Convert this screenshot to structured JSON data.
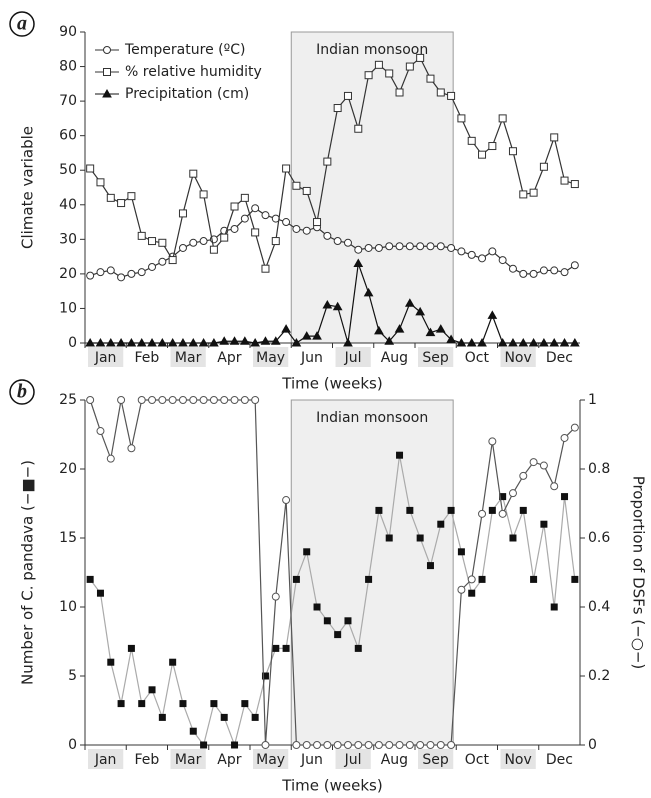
{
  "chart_data": [
    {
      "type": "line",
      "panel_label": "a",
      "ylabel": "Climate variable",
      "xlabel": "Time (weeks)",
      "x": [
        1,
        2,
        3,
        4,
        5,
        6,
        7,
        8,
        9,
        10,
        11,
        12,
        13,
        14,
        15,
        16,
        17,
        18,
        19,
        20,
        21,
        22,
        23,
        24,
        25,
        26,
        27,
        28,
        29,
        30,
        31,
        32,
        33,
        34,
        35,
        36,
        37,
        38,
        39,
        40,
        41,
        42,
        43,
        44,
        45,
        46,
        47,
        48
      ],
      "xlim": [
        0.5,
        48.5
      ],
      "months": [
        "Jan",
        "Feb",
        "Mar",
        "Apr",
        "May",
        "Jun",
        "Jul",
        "Aug",
        "Sep",
        "Oct",
        "Nov",
        "Dec"
      ],
      "ylim": [
        0,
        90
      ],
      "yticks": [
        0,
        10,
        20,
        30,
        40,
        50,
        60,
        70,
        80,
        90
      ],
      "band": {
        "label": "Indian monsoon",
        "range": [
          20.5,
          36.2
        ]
      },
      "legend": "upper left",
      "series": [
        {
          "name": "Temperature (ºC)",
          "marker": "circle",
          "color": "#333333",
          "line_color": "#333333",
          "values": [
            19.5,
            20.5,
            21,
            19,
            20,
            20.5,
            22,
            23.5,
            25,
            27.5,
            29,
            29.5,
            30,
            32.5,
            33,
            36,
            39,
            37,
            36,
            35,
            33,
            32.5,
            33.5,
            31,
            29.5,
            29,
            27,
            27.5,
            27.5,
            28,
            28,
            28,
            28,
            28,
            28,
            27.5,
            26.5,
            25.5,
            24.5,
            26.5,
            24,
            21.5,
            20,
            20,
            21,
            21,
            20.5,
            22.5
          ]
        },
        {
          "name": "% relative humidity",
          "marker": "square",
          "color": "#333333",
          "line_color": "#333333",
          "values": [
            50.5,
            46.5,
            42,
            40.5,
            42.5,
            31,
            29.5,
            29,
            24,
            37.5,
            49,
            43,
            27,
            30.5,
            39.5,
            42,
            32,
            21.5,
            29.5,
            50.5,
            45.5,
            44,
            35,
            52.5,
            68,
            71.5,
            62,
            77.5,
            80.5,
            78,
            72.5,
            80,
            82.5,
            76.5,
            72.5,
            71.5,
            65,
            58.5,
            54.5,
            57,
            65,
            55.5,
            43,
            43.5,
            51,
            59.5,
            47,
            46
          ]
        },
        {
          "name": "Precipitation (cm)",
          "marker": "triangle",
          "color": "#111111",
          "line_color": "#111111",
          "values": [
            0,
            0,
            0,
            0,
            0,
            0,
            0,
            0,
            0,
            0,
            0,
            0,
            0,
            0.5,
            0.5,
            0.5,
            0,
            0.5,
            0.5,
            4,
            0,
            2,
            2,
            11,
            10.5,
            0,
            23,
            14.5,
            3.5,
            0.5,
            4,
            11.5,
            9,
            3,
            4,
            1,
            0,
            0,
            0,
            8,
            0,
            0,
            0,
            0,
            0,
            0,
            0,
            0
          ]
        }
      ]
    },
    {
      "type": "line",
      "panel_label": "b",
      "ylabel": "Number of C. pandava (−■−)",
      "y2label": "Proportion of DSFs (−○−)",
      "xlabel": "Time (weeks)",
      "x": [
        1,
        2,
        3,
        4,
        5,
        6,
        7,
        8,
        9,
        10,
        11,
        12,
        13,
        14,
        15,
        16,
        17,
        18,
        19,
        20,
        21,
        22,
        23,
        24,
        25,
        26,
        27,
        28,
        29,
        30,
        31,
        32,
        33,
        34,
        35,
        36,
        37,
        38,
        39,
        40,
        41,
        42,
        43,
        44,
        45,
        46,
        47,
        48
      ],
      "xlim": [
        0.5,
        48.5
      ],
      "months": [
        "Jan",
        "Feb",
        "Mar",
        "Apr",
        "May",
        "Jun",
        "Jul",
        "Aug",
        "Sep",
        "Oct",
        "Nov",
        "Dec"
      ],
      "ylim": [
        0,
        25
      ],
      "yticks": [
        0,
        5,
        10,
        15,
        20,
        25
      ],
      "y2lim": [
        0,
        1
      ],
      "y2ticks": [
        0,
        0.2,
        0.4,
        0.6,
        0.8,
        1
      ],
      "band": {
        "label": "Indian monsoon",
        "range": [
          20.5,
          36.2
        ]
      },
      "series": [
        {
          "name": "Number of C. pandava",
          "marker": "filled-square",
          "color": "#111111",
          "line_color": "#aaaaaa",
          "values": [
            12,
            11,
            6,
            3,
            7,
            3,
            4,
            2,
            6,
            3,
            1,
            0,
            3,
            2,
            0,
            3,
            2,
            5,
            7,
            7,
            12,
            14,
            10,
            9,
            8,
            9,
            7,
            12,
            17,
            15,
            21,
            17,
            15,
            13,
            16,
            17,
            14,
            11,
            12,
            17,
            18,
            15,
            17,
            12,
            16,
            10,
            18,
            12
          ]
        },
        {
          "name": "Proportion of DSFs",
          "marker": "circle",
          "color": "#555555",
          "line_color": "#555555",
          "axis": "y2",
          "values": [
            1,
            0.91,
            0.83,
            1,
            0.86,
            1,
            1,
            1,
            1,
            1,
            1,
            1,
            1,
            1,
            1,
            1,
            1,
            0,
            0.43,
            0.71,
            0,
            0,
            0,
            0,
            0,
            0,
            0,
            0,
            0,
            0,
            0,
            0,
            0,
            0,
            0,
            0,
            0.45,
            0.48,
            0.67,
            0.88,
            0.67,
            0.73,
            0.78,
            0.82,
            0.81,
            0.75,
            0.89,
            0.92
          ]
        }
      ]
    }
  ]
}
